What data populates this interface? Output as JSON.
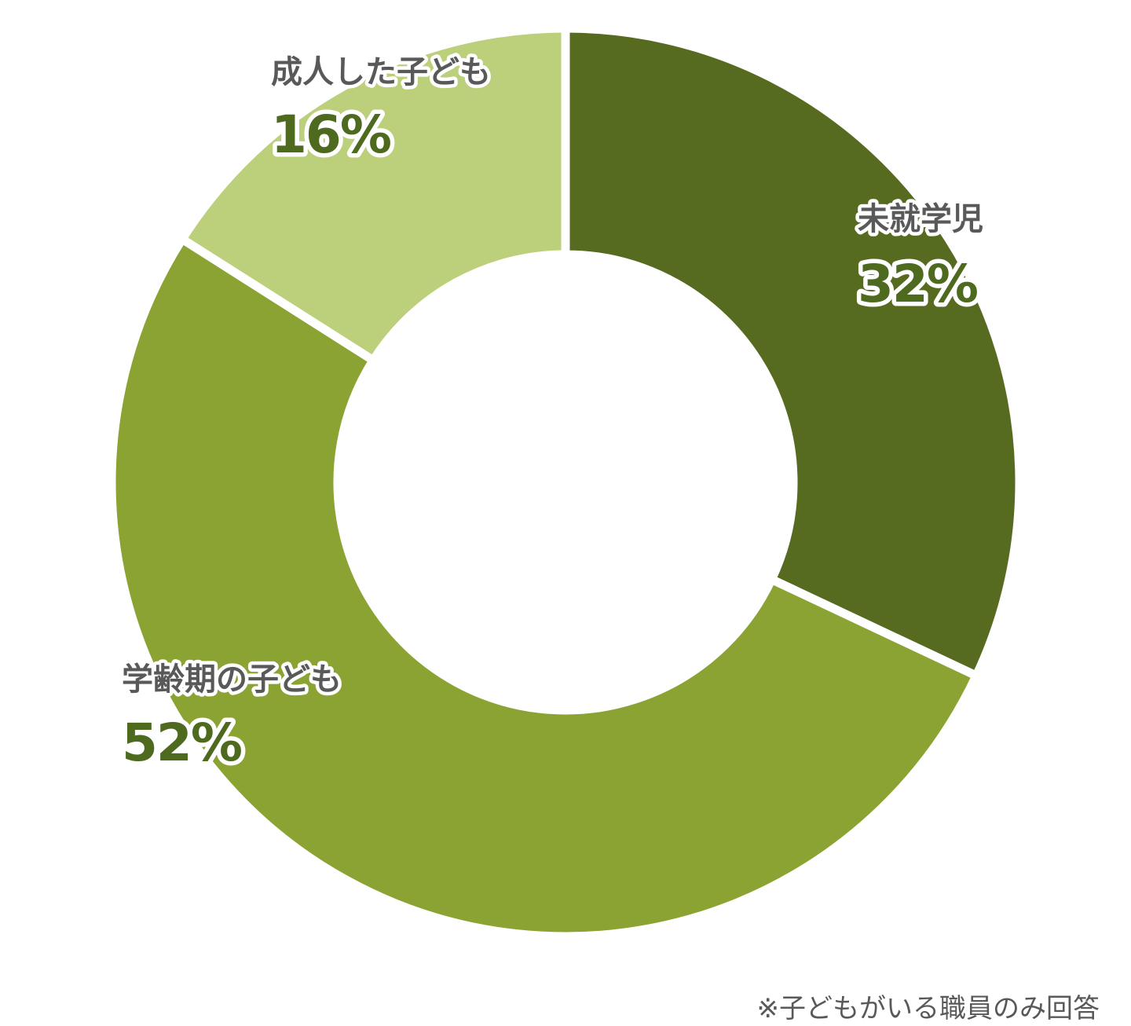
{
  "chart_data": {
    "type": "pie",
    "donut": true,
    "slices": [
      {
        "label": "未就学児",
        "value": 32,
        "display": "32%",
        "color": "#566b20"
      },
      {
        "label": "学齢期の子ども",
        "value": 52,
        "display": "52%",
        "color": "#8ba332"
      },
      {
        "label": "成人した子ども",
        "value": 16,
        "display": "16%",
        "color": "#bccf7a"
      }
    ],
    "start_angle_deg": 0,
    "direction": "clockwise",
    "legend": "none"
  },
  "footnote": "※子どもがいる職員のみ回答"
}
